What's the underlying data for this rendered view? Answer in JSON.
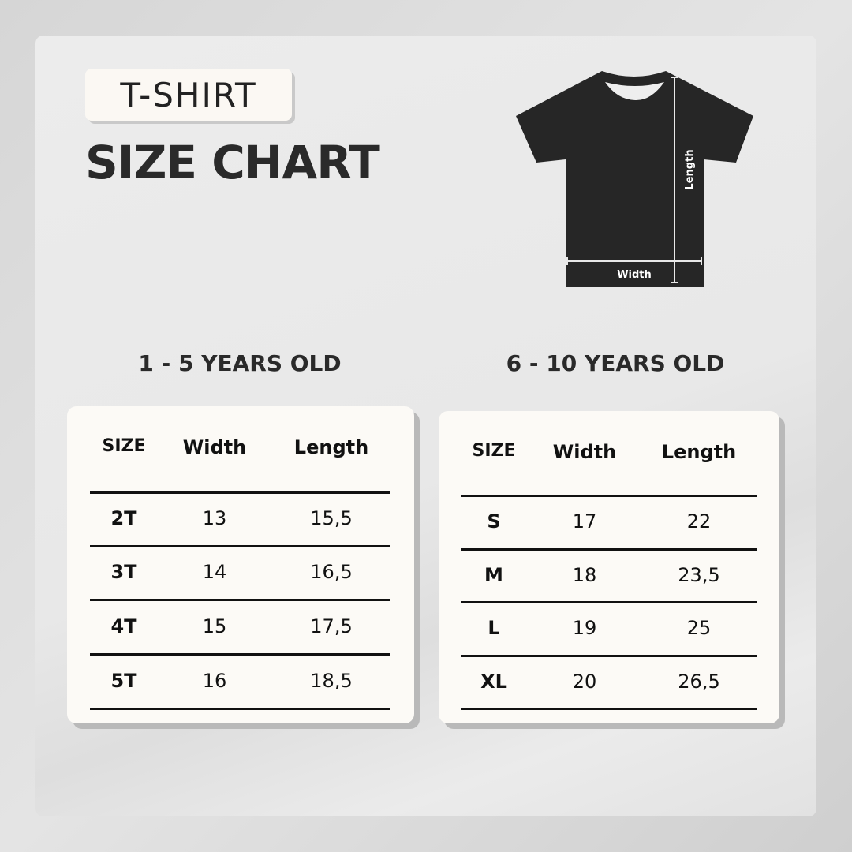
{
  "header": {
    "tag": "T-SHIRT",
    "title": "SIZE CHART"
  },
  "diagram": {
    "length_label": "Length",
    "width_label": "Width",
    "shirt_color": "#262626"
  },
  "tables": [
    {
      "heading": "1 - 5 YEARS OLD",
      "columns": [
        "SIZE",
        "Width",
        "Length"
      ],
      "rows": [
        [
          "2T",
          "13",
          "15,5"
        ],
        [
          "3T",
          "14",
          "16,5"
        ],
        [
          "4T",
          "15",
          "17,5"
        ],
        [
          "5T",
          "16",
          "18,5"
        ]
      ]
    },
    {
      "heading": "6 - 10 YEARS OLD",
      "columns": [
        "SIZE",
        "Width",
        "Length"
      ],
      "rows": [
        [
          "S",
          "17",
          "22"
        ],
        [
          "M",
          "18",
          "23,5"
        ],
        [
          "L",
          "19",
          "25"
        ],
        [
          "XL",
          "20",
          "26,5"
        ]
      ]
    }
  ]
}
